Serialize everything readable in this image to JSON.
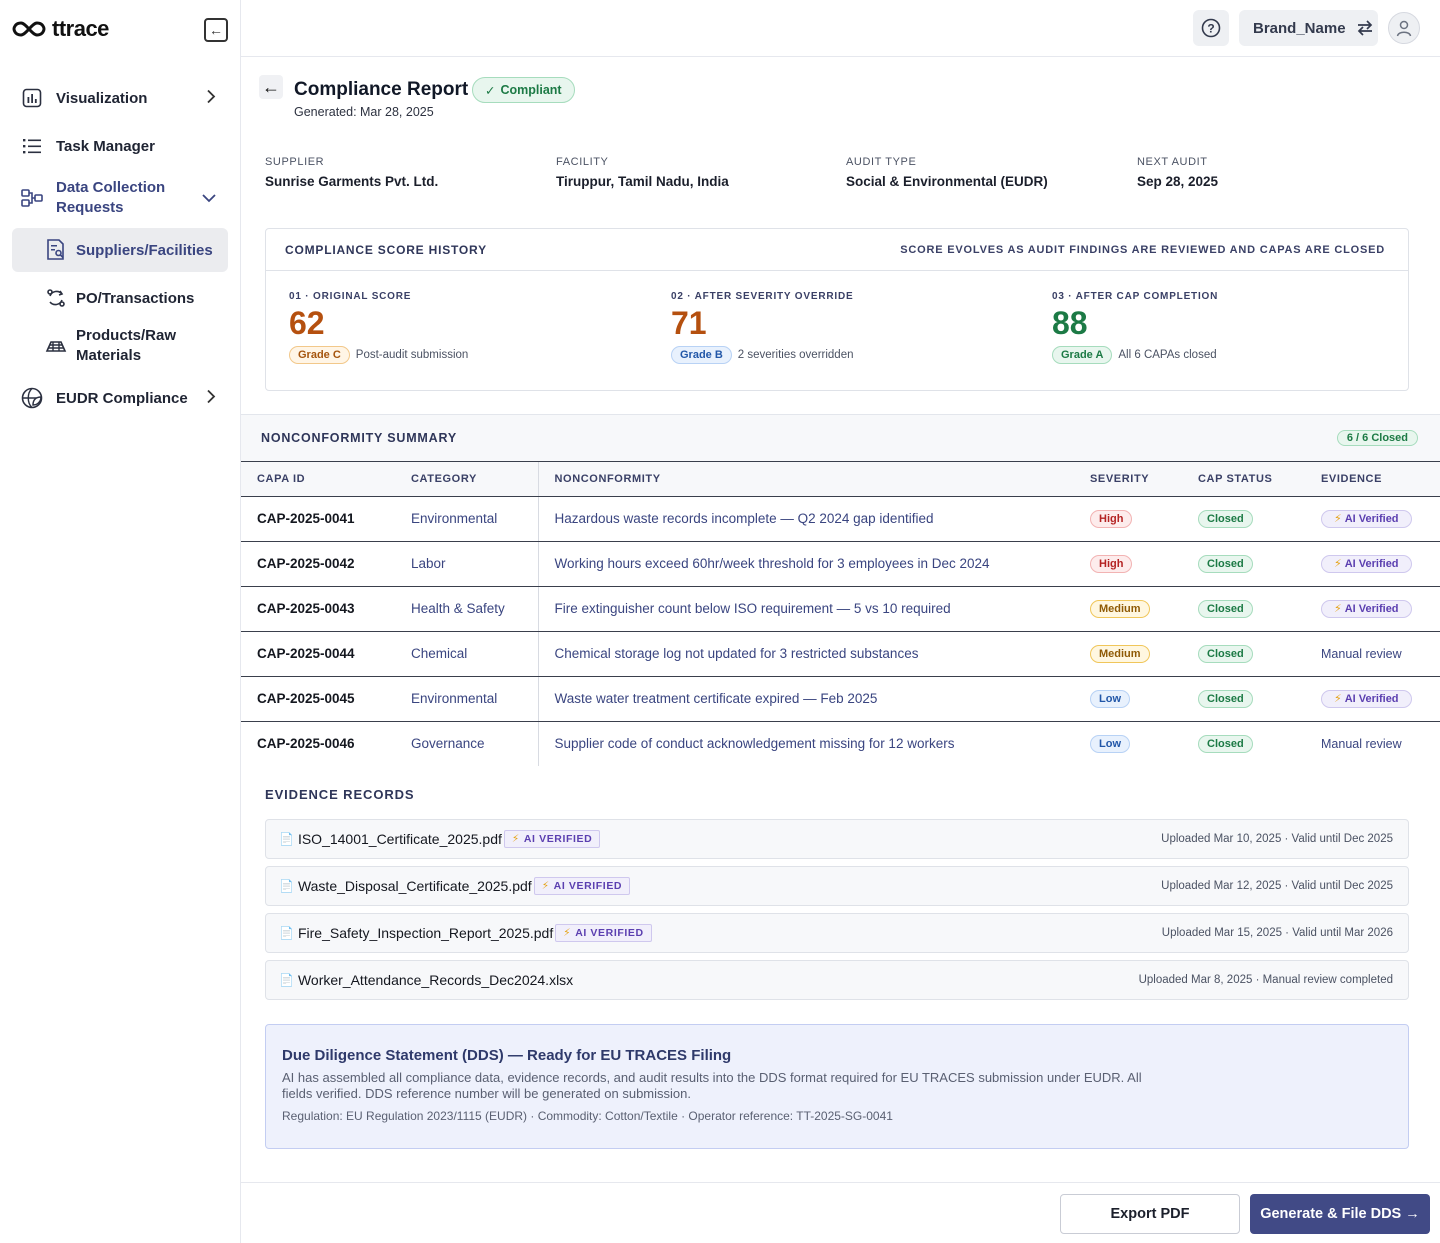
{
  "app": {
    "logo_text": "ttrace",
    "brand_name": "Brand_Name"
  },
  "sidebar": {
    "items": [
      {
        "label": "Visualization",
        "icon": "bar-chart-icon"
      },
      {
        "label": "Task Manager",
        "icon": "list-icon"
      },
      {
        "label": "Data Collection Requests",
        "icon": "data-flow-icon"
      },
      {
        "label": "Suppliers/Facilities",
        "icon": "supplier-doc-icon"
      },
      {
        "label": "PO/Transactions",
        "icon": "sync-icon"
      },
      {
        "label": "Products/Raw Materials",
        "icon": "stack-icon"
      },
      {
        "label": "EUDR Compliance",
        "icon": "globe-leaf-icon"
      }
    ]
  },
  "report": {
    "title": "Compliance Report",
    "status": "Compliant",
    "generated": "Generated: Mar 28, 2025"
  },
  "meta": [
    {
      "label": "SUPPLIER",
      "value": "Sunrise Garments Pvt. Ltd."
    },
    {
      "label": "FACILITY",
      "value": "Tiruppur, Tamil Nadu, India"
    },
    {
      "label": "AUDIT TYPE",
      "value": "Social & Environmental (EUDR)"
    },
    {
      "label": "NEXT AUDIT",
      "value": "Sep 28, 2025"
    }
  ],
  "score_history": {
    "title": "COMPLIANCE SCORE HISTORY",
    "note": "SCORE EVOLVES AS AUDIT FINDINGS ARE REVIEWED AND CAPAS ARE CLOSED",
    "steps": [
      {
        "step": "01 · ORIGINAL SCORE",
        "score": "62",
        "grade": "Grade C",
        "caption": "Post-audit submission",
        "color": "#b5500f"
      },
      {
        "step": "02 · AFTER SEVERITY OVERRIDE",
        "score": "71",
        "grade": "Grade B",
        "caption": "2 severities overridden",
        "color": "#b5500f"
      },
      {
        "step": "03 · AFTER CAP COMPLETION",
        "score": "88",
        "grade": "Grade A",
        "caption": "All 6 CAPAs closed",
        "color": "#1c7a45"
      }
    ]
  },
  "nonconformity": {
    "title": "NONCONFORMITY SUMMARY",
    "closed_count": "6 / 6 Closed",
    "columns": [
      "CAPA ID",
      "CATEGORY",
      "NONCONFORMITY",
      "SEVERITY",
      "CAP STATUS",
      "EVIDENCE"
    ],
    "rows": [
      {
        "id": "CAP-2025-0041",
        "category": "Environmental",
        "text": "Hazardous waste records incomplete — Q2 2024 gap identified",
        "severity": "High",
        "status": "Closed",
        "evidence": "AI Verified"
      },
      {
        "id": "CAP-2025-0042",
        "category": "Labor",
        "text": "Working hours exceed 60hr/week threshold for 3 employees in Dec 2024",
        "severity": "High",
        "status": "Closed",
        "evidence": "AI Verified"
      },
      {
        "id": "CAP-2025-0043",
        "category": "Health & Safety",
        "text": "Fire extinguisher count below ISO requirement — 5 vs 10 required",
        "severity": "Medium",
        "status": "Closed",
        "evidence": "AI Verified"
      },
      {
        "id": "CAP-2025-0044",
        "category": "Chemical",
        "text": "Chemical storage log not updated for 3 restricted substances",
        "severity": "Medium",
        "status": "Closed",
        "evidence": "Manual review"
      },
      {
        "id": "CAP-2025-0045",
        "category": "Environmental",
        "text": "Waste water treatment certificate expired — Feb 2025",
        "severity": "Low",
        "status": "Closed",
        "evidence": "AI Verified"
      },
      {
        "id": "CAP-2025-0046",
        "category": "Governance",
        "text": "Supplier code of conduct acknowledgement missing for 12 workers",
        "severity": "Low",
        "status": "Closed",
        "evidence": "Manual review"
      }
    ]
  },
  "evidence": {
    "title": "EVIDENCE RECORDS",
    "ai_tag": "AI VERIFIED",
    "records": [
      {
        "file": "ISO_14001_Certificate_2025.pdf",
        "ai": true,
        "meta": "Uploaded Mar 10, 2025 · Valid until Dec 2025"
      },
      {
        "file": "Waste_Disposal_Certificate_2025.pdf",
        "ai": true,
        "meta": "Uploaded Mar 12, 2025 · Valid until Dec 2025"
      },
      {
        "file": "Fire_Safety_Inspection_Report_2025.pdf",
        "ai": true,
        "meta": "Uploaded Mar 15, 2025 · Valid until Mar 2026"
      },
      {
        "file": "Worker_Attendance_Records_Dec2024.xlsx",
        "ai": false,
        "meta": "Uploaded Mar 8, 2025 · Manual review completed"
      }
    ]
  },
  "dds": {
    "title": "Due Diligence Statement (DDS) — Ready for EU TRACES Filing",
    "body": "AI has assembled all compliance data, evidence records, and audit results into the DDS format required for EU TRACES submission under EUDR. All fields verified. DDS reference number will be generated on submission.",
    "regulation": "Regulation: EU Regulation 2023/1115 (EUDR) · Commodity: Cotton/Textile · Operator reference: TT-2025-SG-0041"
  },
  "actions": {
    "export": "Export PDF",
    "file": "Generate & File DDS →"
  }
}
